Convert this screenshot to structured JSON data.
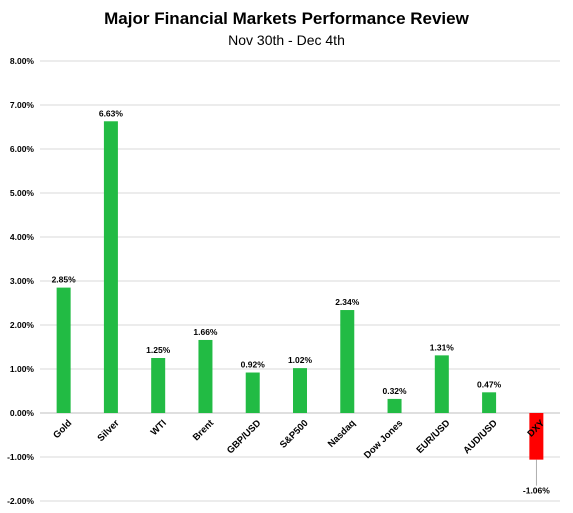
{
  "chart_data": {
    "type": "bar",
    "title": "Major Financial Markets Performance Review",
    "subtitle": "Nov 30th - Dec 4th",
    "categories": [
      "Gold",
      "Silver",
      "WTI",
      "Brent",
      "GBP/USD",
      "S&P500",
      "Nasdaq",
      "Dow Jones",
      "EUR/USD",
      "AUD/USD",
      "DXY"
    ],
    "values": [
      2.85,
      6.63,
      1.25,
      1.66,
      0.92,
      1.02,
      2.34,
      0.32,
      1.31,
      0.47,
      -1.06
    ],
    "data_labels": [
      "2.85%",
      "6.63%",
      "1.25%",
      "1.66%",
      "0.92%",
      "1.02%",
      "2.34%",
      "0.32%",
      "1.31%",
      "0.47%",
      "-1.06%"
    ],
    "ylim": [
      -2,
      8
    ],
    "yticks": [
      8,
      7,
      6,
      5,
      4,
      3,
      2,
      1,
      0,
      -1,
      -2
    ],
    "ytick_labels": [
      "8.00%",
      "7.00%",
      "6.00%",
      "5.00%",
      "4.00%",
      "3.00%",
      "2.00%",
      "1.00%",
      "0.00%",
      "-1.00%",
      "-2.00%"
    ],
    "grid": true,
    "colors": {
      "positive": "#22bb44",
      "negative": "#ff0000",
      "grid": "#d9d9d9",
      "axis": "#bfbfbf"
    }
  }
}
